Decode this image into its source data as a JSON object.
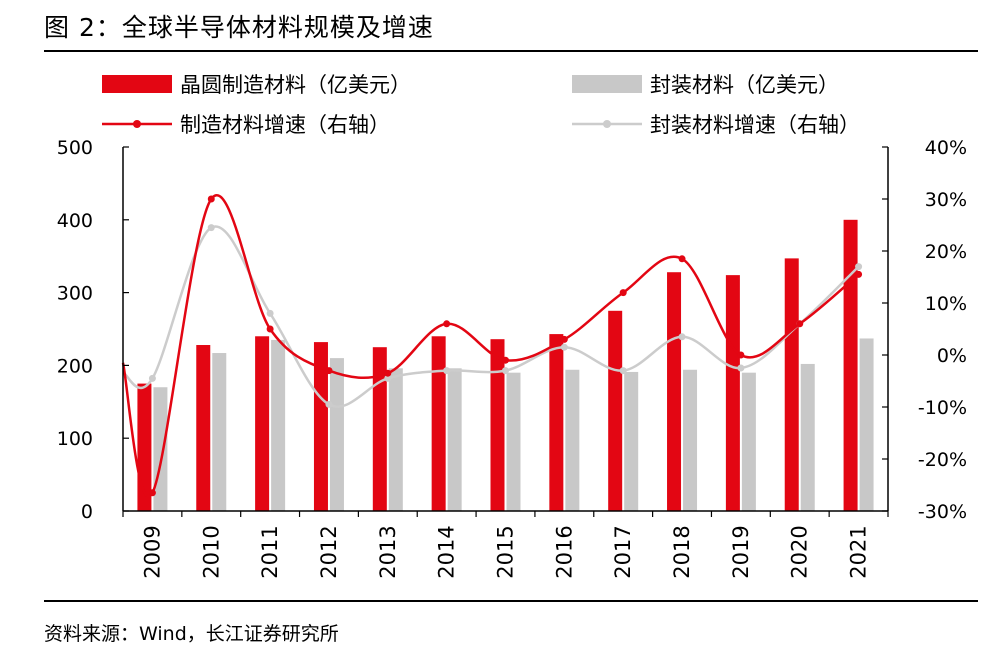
{
  "figure": {
    "title": "图 2：全球半导体材料规模及增速",
    "source": "资料来源：Wind，长江证券研究所"
  },
  "chart_data": {
    "type": "bar",
    "categories": [
      "2009",
      "2010",
      "2011",
      "2012",
      "2013",
      "2014",
      "2015",
      "2016",
      "2017",
      "2018",
      "2019",
      "2020",
      "2021"
    ],
    "series": [
      {
        "name": "晶圆制造材料（亿美元）",
        "kind": "bar",
        "axis": "left",
        "color": "#e30613",
        "values": [
          175,
          228,
          240,
          232,
          225,
          240,
          236,
          243,
          275,
          328,
          324,
          347,
          400
        ]
      },
      {
        "name": "封装材料（亿美元）",
        "kind": "bar",
        "axis": "left",
        "color": "#c8c8c8",
        "values": [
          170,
          217,
          235,
          210,
          196,
          196,
          190,
          194,
          191,
          194,
          190,
          202,
          237
        ]
      },
      {
        "name": "制造材料增速（右轴）",
        "kind": "line",
        "axis": "right",
        "color": "#e30613",
        "values": [
          -0.265,
          0.3,
          0.05,
          -0.03,
          -0.035,
          0.06,
          -0.01,
          0.03,
          0.12,
          0.185,
          0.0,
          0.06,
          0.155
        ]
      },
      {
        "name": "封装材料增速（右轴）",
        "kind": "line",
        "axis": "right",
        "color": "#cccccc",
        "values": [
          -0.045,
          0.245,
          0.08,
          -0.095,
          -0.045,
          -0.03,
          -0.03,
          0.015,
          -0.03,
          0.035,
          -0.025,
          0.06,
          0.17
        ]
      }
    ],
    "y_left": {
      "ylim": [
        0,
        500
      ],
      "ticks": [
        "0",
        "100",
        "200",
        "300",
        "400",
        "500"
      ]
    },
    "y_right": {
      "ylim": [
        -0.3,
        0.4
      ],
      "ticks": [
        "-30%",
        "-20%",
        "-10%",
        "0%",
        "10%",
        "20%",
        "30%",
        "40%"
      ]
    },
    "legend_position": "top",
    "grid": false
  }
}
